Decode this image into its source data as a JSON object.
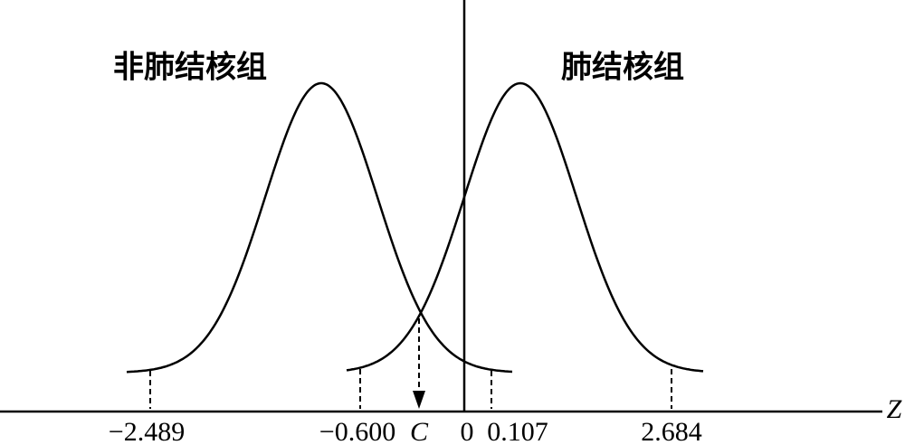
{
  "groups": {
    "left": "非肺结核组",
    "right": "肺结核组"
  },
  "axis": {
    "label": "Z",
    "ticks": [
      "−2.489",
      "−0.600",
      "C",
      "0",
      "0.107",
      "2.684"
    ]
  }
}
